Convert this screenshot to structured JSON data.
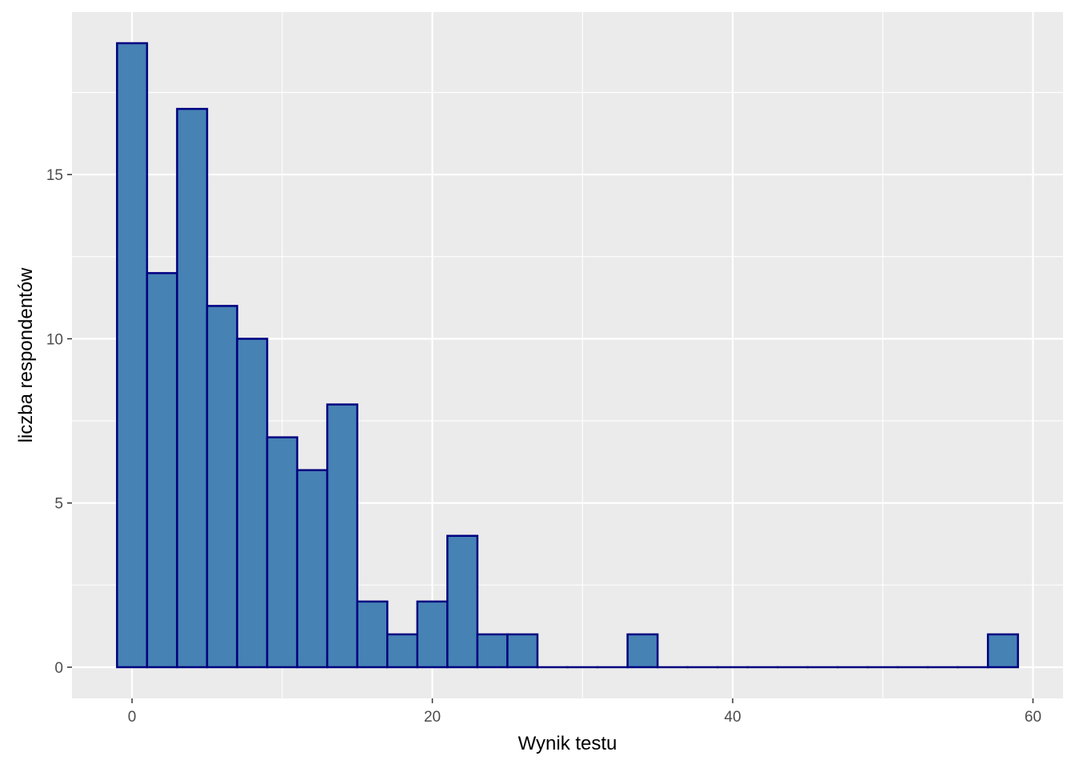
{
  "chart_data": {
    "type": "bar",
    "title": "",
    "xlabel": "Wynik testu",
    "ylabel": "liczba respondentów",
    "bin_width": 2,
    "bins": [
      {
        "x": 0,
        "count": 19
      },
      {
        "x": 2,
        "count": 12
      },
      {
        "x": 4,
        "count": 17
      },
      {
        "x": 6,
        "count": 11
      },
      {
        "x": 8,
        "count": 10
      },
      {
        "x": 10,
        "count": 7
      },
      {
        "x": 12,
        "count": 6
      },
      {
        "x": 14,
        "count": 8
      },
      {
        "x": 16,
        "count": 2
      },
      {
        "x": 18,
        "count": 1
      },
      {
        "x": 20,
        "count": 2
      },
      {
        "x": 22,
        "count": 4
      },
      {
        "x": 24,
        "count": 1
      },
      {
        "x": 26,
        "count": 1
      },
      {
        "x": 28,
        "count": 0
      },
      {
        "x": 30,
        "count": 0
      },
      {
        "x": 32,
        "count": 0
      },
      {
        "x": 34,
        "count": 1
      },
      {
        "x": 36,
        "count": 0
      },
      {
        "x": 38,
        "count": 0
      },
      {
        "x": 40,
        "count": 0
      },
      {
        "x": 42,
        "count": 0
      },
      {
        "x": 44,
        "count": 0
      },
      {
        "x": 46,
        "count": 0
      },
      {
        "x": 48,
        "count": 0
      },
      {
        "x": 50,
        "count": 0
      },
      {
        "x": 52,
        "count": 0
      },
      {
        "x": 54,
        "count": 0
      },
      {
        "x": 56,
        "count": 0
      },
      {
        "x": 58,
        "count": 1
      }
    ],
    "xlim": [
      -4,
      62
    ],
    "ylim": [
      -0.95,
      19.95
    ],
    "x_ticks": [
      0,
      20,
      40,
      60
    ],
    "y_ticks": [
      0,
      5,
      10,
      15
    ],
    "grid": true,
    "colors": {
      "panel_bg": "#ebebeb",
      "grid_major": "#ffffff",
      "bar_fill": "#4682b4",
      "bar_outline": "#000080",
      "tick_text": "#4d4d4d",
      "tick_mark": "#333333"
    }
  }
}
